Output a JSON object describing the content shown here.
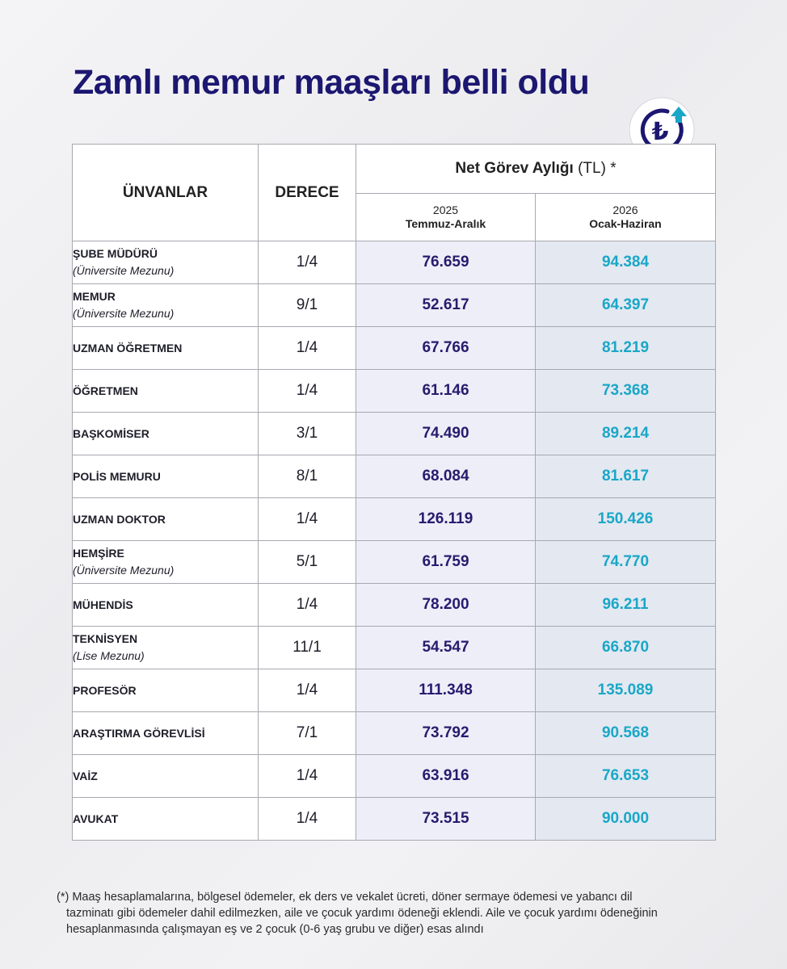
{
  "title": "Zamlı memur maaşları belli oldu",
  "badge": {
    "icon": "turkish-lira-up-icon",
    "symbol": "₺",
    "colors": {
      "ring": "#1c1770",
      "arrow": "#1aa7c7"
    }
  },
  "table": {
    "headers": {
      "titles": "ÜNVANLAR",
      "grade": "DERECE",
      "net_label": "Net Görev Aylığı",
      "net_unit": "(TL) *",
      "col_2025_year": "2025",
      "col_2025_period": "Temmuz-Aralık",
      "col_2026_year": "2026",
      "col_2026_period": "Ocak-Haziran"
    },
    "rows": [
      {
        "title": "ŞUBE MÜDÜRÜ",
        "sub": "(Üniversite Mezunu)",
        "grade": "1/4",
        "v2025": "76.659",
        "v2026": "94.384"
      },
      {
        "title": "MEMUR",
        "sub": "(Üniversite Mezunu)",
        "grade": "9/1",
        "v2025": "52.617",
        "v2026": "64.397"
      },
      {
        "title": "UZMAN ÖĞRETMEN",
        "sub": "",
        "grade": "1/4",
        "v2025": "67.766",
        "v2026": "81.219"
      },
      {
        "title": "ÖĞRETMEN",
        "sub": "",
        "grade": "1/4",
        "v2025": "61.146",
        "v2026": "73.368"
      },
      {
        "title": "BAŞKOMİSER",
        "sub": "",
        "grade": "3/1",
        "v2025": "74.490",
        "v2026": "89.214"
      },
      {
        "title": "POLİS MEMURU",
        "sub": "",
        "grade": "8/1",
        "v2025": "68.084",
        "v2026": "81.617"
      },
      {
        "title": "UZMAN DOKTOR",
        "sub": "",
        "grade": "1/4",
        "v2025": "126.119",
        "v2026": "150.426"
      },
      {
        "title": "HEMŞİRE",
        "sub": "(Üniversite Mezunu)",
        "grade": "5/1",
        "v2025": "61.759",
        "v2026": "74.770"
      },
      {
        "title": "MÜHENDİS",
        "sub": "",
        "grade": "1/4",
        "v2025": "78.200",
        "v2026": "96.211"
      },
      {
        "title": "TEKNİSYEN",
        "sub": "(Lise Mezunu)",
        "grade": "11/1",
        "v2025": "54.547",
        "v2026": "66.870"
      },
      {
        "title": "PROFESÖR",
        "sub": "",
        "grade": "1/4",
        "v2025": "111.348",
        "v2026": "135.089"
      },
      {
        "title": "ARAŞTIRMA GÖREVLİSİ",
        "sub": "",
        "grade": "7/1",
        "v2025": "73.792",
        "v2026": "90.568"
      },
      {
        "title": "VAİZ",
        "sub": "",
        "grade": "1/4",
        "v2025": "63.916",
        "v2026": "76.653"
      },
      {
        "title": "AVUKAT",
        "sub": "",
        "grade": "1/4",
        "v2025": "73.515",
        "v2026": "90.000"
      }
    ]
  },
  "footnote": {
    "line1": "(*) Maaş hesaplamalarına, bölgesel ödemeler, ek ders ve vekalet ücreti, döner sermaye ödemesi ve yabancı dil",
    "line2": "tazminatı gibi ödemeler dahil edilmezken, aile ve çocuk yardımı ödeneği eklendi. Aile ve çocuk yardımı ödeneğinin",
    "line3": "hesaplanmasında çalışmayan eş ve 2 çocuk (0-6 yaş grubu ve diğer) esas alındı"
  }
}
